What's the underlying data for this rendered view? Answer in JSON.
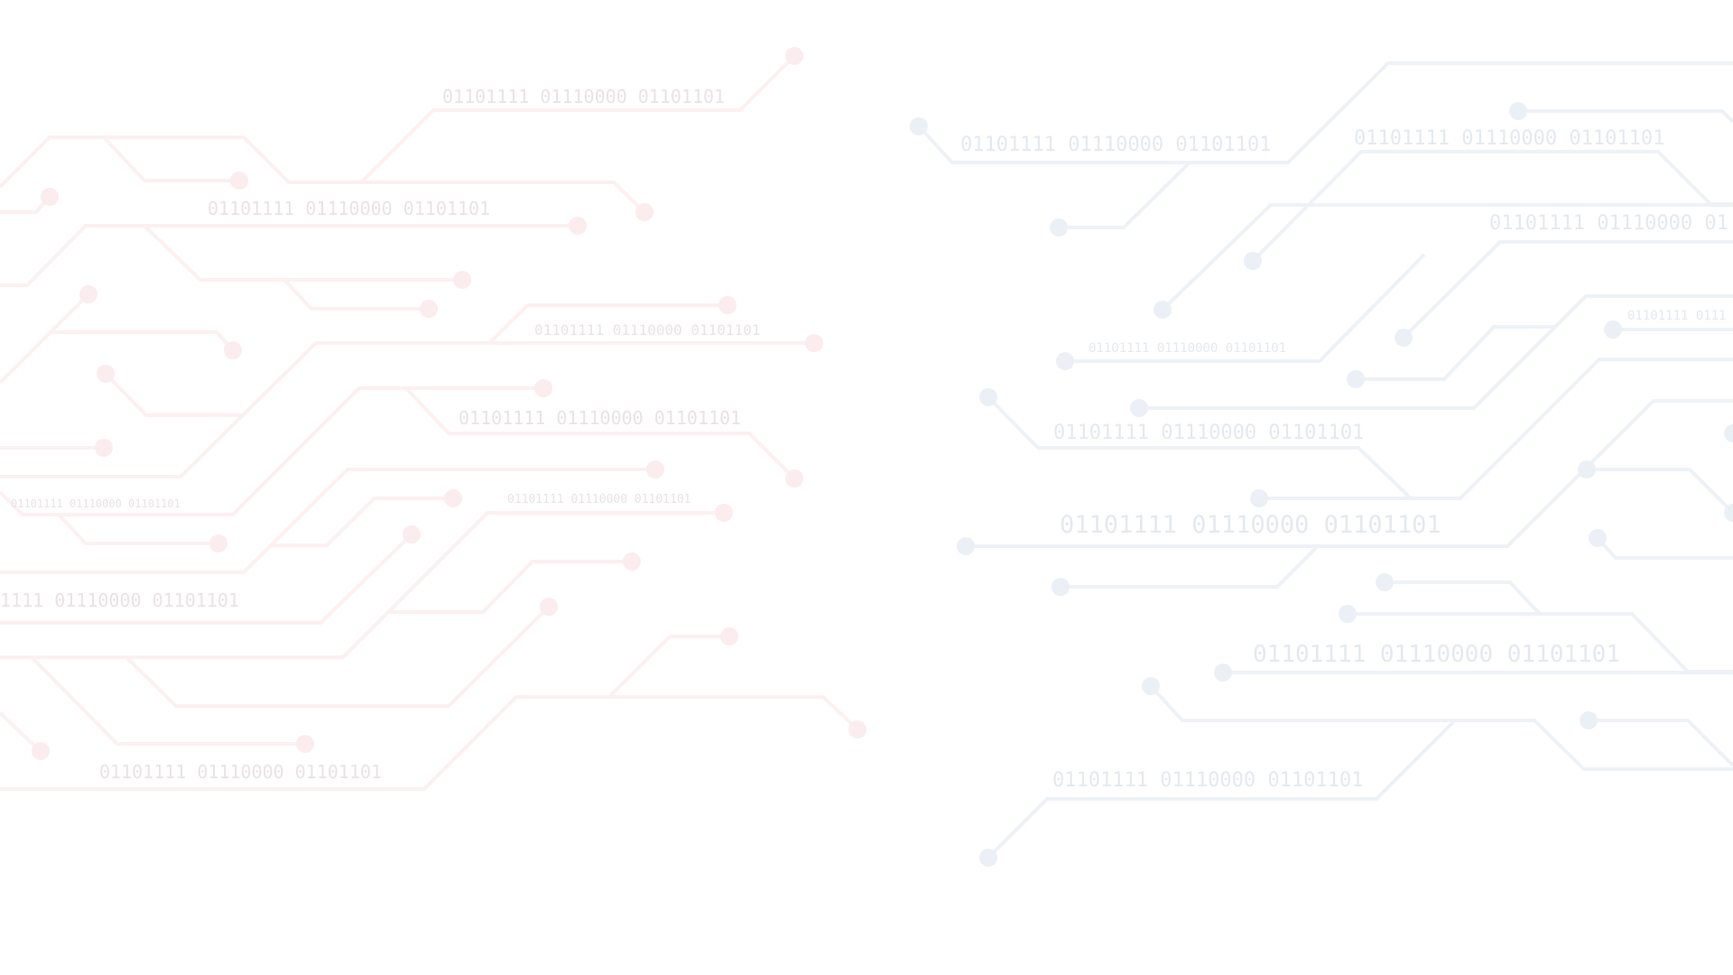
{
  "background": "#ffffff",
  "colors": {
    "left_trace": "#fcf0f1",
    "left_node": "#fbecee",
    "right_trace": "#eef2f7",
    "right_node": "#ebf0f6",
    "binary_text_left": "#e9e3e6",
    "binary_text_right": "#e5e9ef"
  },
  "binary": {
    "l1": "01101111 01110000 01101101",
    "l2": "01101111 01110000 01101101",
    "l3": "01101111 01110000 01101101",
    "l4": "01101111 01110000 01101101",
    "l5": "01101111 01110000 01101101",
    "l6": "01101111 01110000 01101101",
    "l7": "1111 01110000 01101101",
    "l8": "01101111 01110000 01101101",
    "r1": "01101111 01110000 01101101",
    "r2": "01101111 01110000 01101101",
    "r3": "01101111 01110000 01",
    "r4": "01101111 01110000 01101101",
    "r5": "01101111 0111",
    "r6": "01101111 01110000 01101101",
    "r7": "01101111 01110000 01101101",
    "r8": "01101111 01110000 01101101",
    "r9": "01101111 01110000 01101101"
  }
}
